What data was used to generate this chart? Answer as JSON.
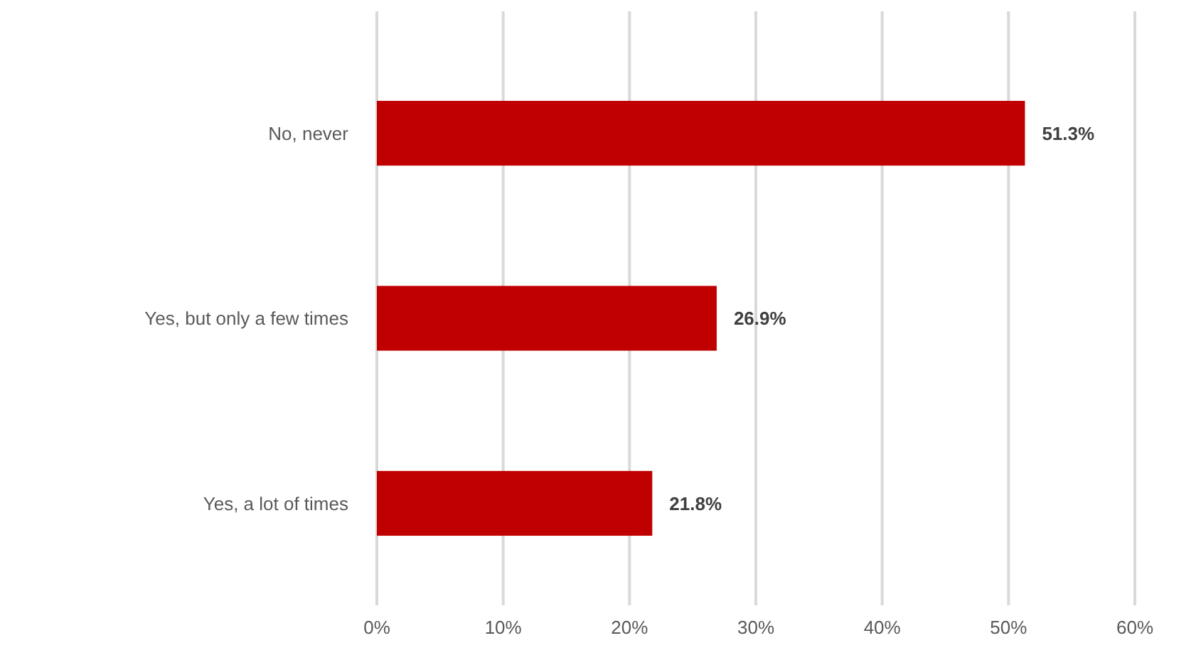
{
  "chart_data": {
    "type": "bar",
    "orientation": "horizontal",
    "categories": [
      "No, never",
      "Yes, but only a few times",
      "Yes, a lot of times"
    ],
    "values": [
      51.3,
      26.9,
      21.8
    ],
    "color": "#c00000",
    "value_labels": [
      "51.3%",
      "26.9%",
      "21.8%"
    ],
    "xlim": [
      0,
      60
    ],
    "xticks": [
      {
        "value": 0,
        "label": "0%"
      },
      {
        "value": 10,
        "label": "10%"
      },
      {
        "value": 20,
        "label": "20%"
      },
      {
        "value": 30,
        "label": "30%"
      },
      {
        "value": 40,
        "label": "40%"
      },
      {
        "value": 50,
        "label": "50%"
      },
      {
        "value": 60,
        "label": "60%"
      }
    ],
    "grid": "x"
  }
}
